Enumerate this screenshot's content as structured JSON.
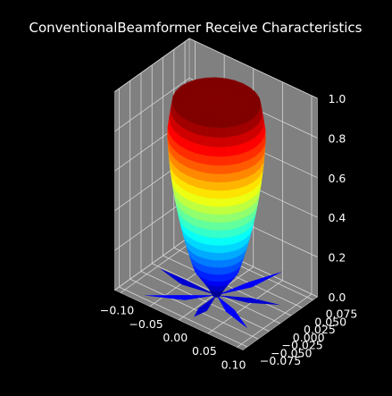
{
  "chart_data": {
    "type": "surface3d",
    "title": "ConventionalBeamformer Receive Characteristics",
    "xlabel": "",
    "ylabel": "",
    "zlabel": "",
    "x_ticks": [
      "−0.10",
      "−0.05",
      "0.00",
      "0.05",
      "0.10"
    ],
    "x_tick_values": [
      -0.1,
      -0.05,
      0.0,
      0.05,
      0.1
    ],
    "y_ticks": [
      "0.075",
      "0.050",
      "0.025",
      "0.000",
      "−0.025",
      "−0.050",
      "−0.075"
    ],
    "y_tick_values": [
      0.075,
      0.05,
      0.025,
      0.0,
      -0.025,
      -0.05,
      -0.075
    ],
    "z_ticks": [
      "0.0",
      "0.2",
      "0.4",
      "0.6",
      "0.8",
      "1.0"
    ],
    "z_tick_values": [
      0.0,
      0.2,
      0.4,
      0.6,
      0.8,
      1.0
    ],
    "xlim": [
      -0.11,
      0.11
    ],
    "ylim": [
      -0.085,
      0.085
    ],
    "zlim": [
      0.0,
      1.0
    ],
    "colormap": "jet",
    "grid": true,
    "pane_color": "#808080",
    "background": "#000000",
    "surface": "beam pattern lobe: main lobe radius ~0.07, peak response 1.0 at top; sidelobes at base spread to ~0.09"
  }
}
